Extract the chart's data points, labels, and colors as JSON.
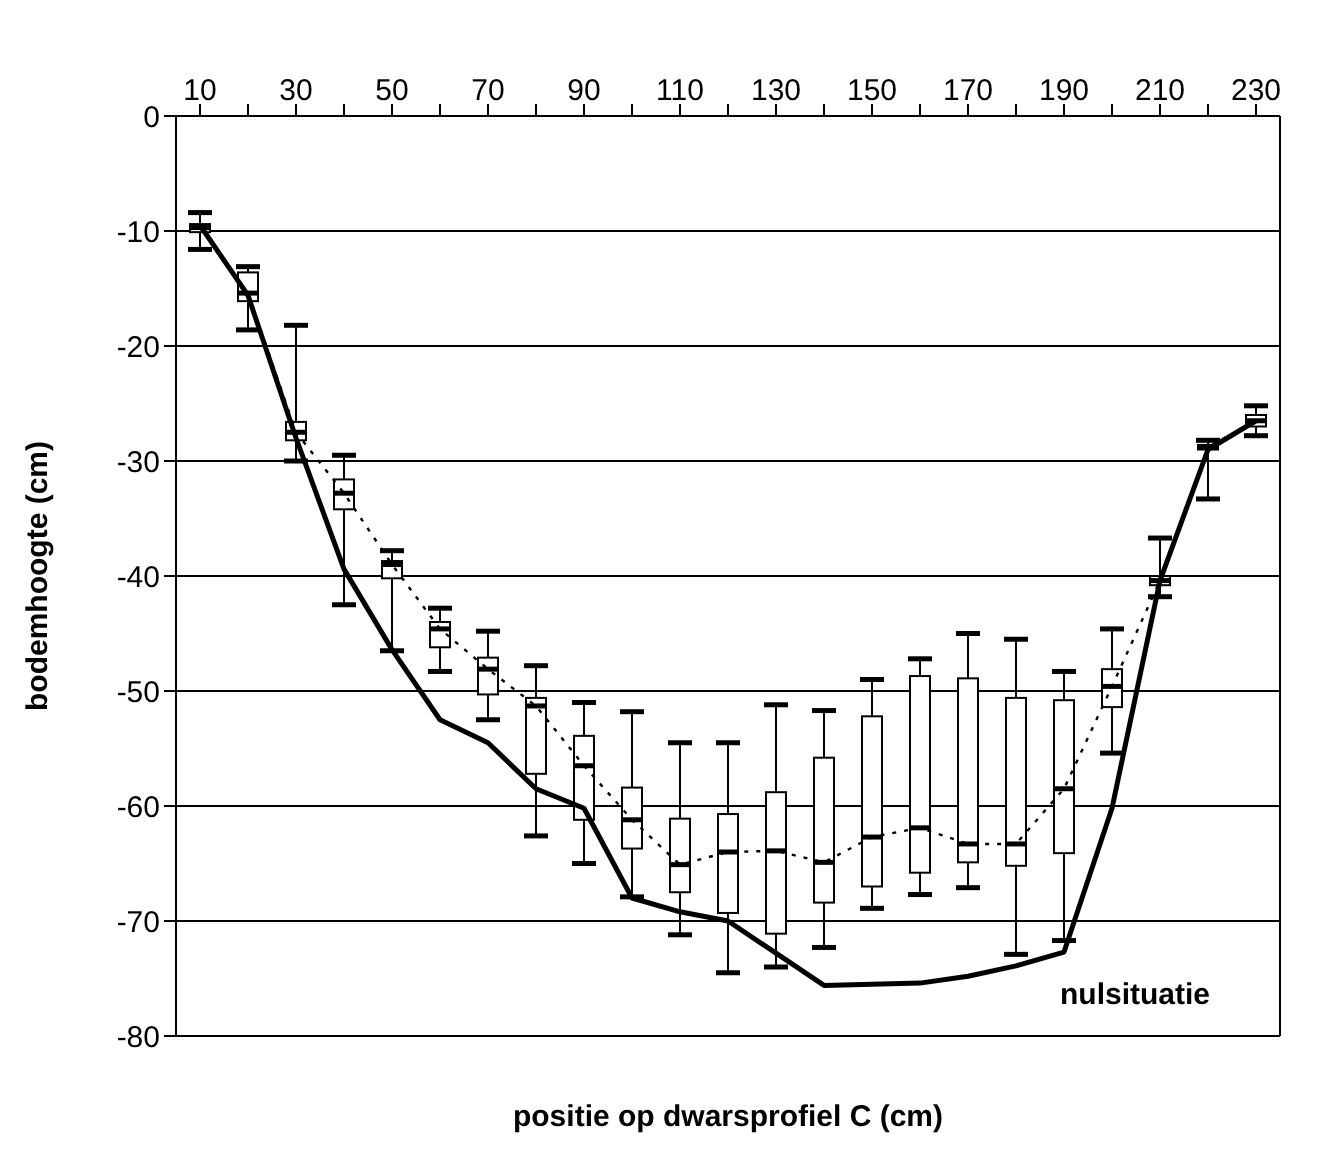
{
  "chart_data": {
    "type": "box",
    "xlabel": "positie op dwarsprofiel C (cm)",
    "ylabel": "bodemhoogte (cm)",
    "categories": [
      "10",
      null,
      "30",
      null,
      "50",
      null,
      "70",
      null,
      "90",
      null,
      "110",
      null,
      "130",
      null,
      "150",
      null,
      "170",
      null,
      "190",
      null,
      "210",
      null,
      "230"
    ],
    "ylim": [
      -80,
      0
    ],
    "yticks": [
      -80,
      -70,
      -60,
      -50,
      -40,
      -30,
      -20,
      -10,
      0
    ],
    "grid": "y",
    "series": [
      {
        "color": "#000000",
        "boxes": [
          {
            "low": -11.6,
            "q1": -10.1,
            "median": -9.7,
            "q3": -9.4,
            "high": -8.4
          },
          {
            "low": -18.6,
            "q1": -16.1,
            "median": -15.4,
            "q3": -13.6,
            "high": -13.1
          },
          {
            "low": -30,
            "q1": -28.2,
            "median": -27.5,
            "q3": -26.6,
            "high": -18.2
          },
          {
            "low": -42.5,
            "q1": -34.2,
            "median": -32.8,
            "q3": -31.6,
            "high": -29.5
          },
          {
            "low": -46.5,
            "q1": -40.2,
            "median": -39,
            "q3": -38.7,
            "high": -37.8
          },
          {
            "low": -48.3,
            "q1": -46.2,
            "median": -44.6,
            "q3": -44,
            "high": -42.8
          },
          {
            "low": -52.5,
            "q1": -50.3,
            "median": -48.1,
            "q3": -47.1,
            "high": -44.8
          },
          {
            "low": -62.6,
            "q1": -57.2,
            "median": -51.3,
            "q3": -50.6,
            "high": -47.8
          },
          {
            "low": -65,
            "q1": -61.2,
            "median": -56.5,
            "q3": -53.9,
            "high": -51
          },
          {
            "low": -67.9,
            "q1": -63.7,
            "median": -61.2,
            "q3": -58.4,
            "high": -51.8
          },
          {
            "low": -71.2,
            "q1": -67.5,
            "median": -65.1,
            "q3": -61.1,
            "high": -54.5
          },
          {
            "low": -74.5,
            "q1": -69.3,
            "median": -64,
            "q3": -60.7,
            "high": -54.5
          },
          {
            "low": -74,
            "q1": -71.1,
            "median": -63.9,
            "q3": -58.8,
            "high": -51.2
          },
          {
            "low": -72.3,
            "q1": -68.4,
            "median": -64.9,
            "q3": -55.8,
            "high": -51.7
          },
          {
            "low": -68.9,
            "q1": -67,
            "median": -62.7,
            "q3": -52.2,
            "high": -49
          },
          {
            "low": -67.7,
            "q1": -65.8,
            "median": -61.9,
            "q3": -48.7,
            "high": -47.2
          },
          {
            "low": -67.1,
            "q1": -64.9,
            "median": -63.3,
            "q3": -48.9,
            "high": -45
          },
          {
            "low": -72.9,
            "q1": -65.2,
            "median": -63.3,
            "q3": -50.6,
            "high": -45.5
          },
          {
            "low": -71.7,
            "q1": -64.1,
            "median": -58.5,
            "q3": -50.8,
            "high": -48.3
          },
          {
            "low": -55.4,
            "q1": -51.4,
            "median": -49.6,
            "q3": -48.1,
            "high": -44.6
          },
          {
            "low": -41.8,
            "q1": -40.8,
            "median": -40.4,
            "q3": -40,
            "high": -36.7
          },
          {
            "low": -33.3,
            "q1": -29,
            "median": -28.8,
            "q3": -28.6,
            "high": -28.2
          },
          {
            "low": -27.8,
            "q1": -27,
            "median": -26.5,
            "q3": -26,
            "high": -25.2
          }
        ]
      },
      {
        "type": "line",
        "color": "#000000",
        "line_style": "dotted",
        "marker": "none",
        "values": [
          -9.7,
          -15.4,
          -27.5,
          -32.8,
          -39,
          -44.6,
          -48.1,
          -51.3,
          -56.5,
          -61.2,
          -65.1,
          -64,
          -63.9,
          -64.9,
          -62.7,
          -61.9,
          -63.3,
          -63.3,
          -58.5,
          -49.6,
          -40.4,
          -28.8,
          -26.5
        ]
      },
      {
        "type": "line",
        "name": "nulsituatie",
        "color": "#000000",
        "line_style": "solid",
        "marker": "none",
        "values": [
          -9.5,
          -15.6,
          -28,
          -39.4,
          -46.4,
          -52.5,
          -54.5,
          -58.5,
          -60.2,
          -68,
          -69.2,
          -70,
          -72.8,
          -75.6,
          -75.5,
          -75.4,
          -74.8,
          -73.9,
          -72.7,
          -60.2,
          -40.4,
          -29,
          -26.5
        ]
      }
    ]
  }
}
